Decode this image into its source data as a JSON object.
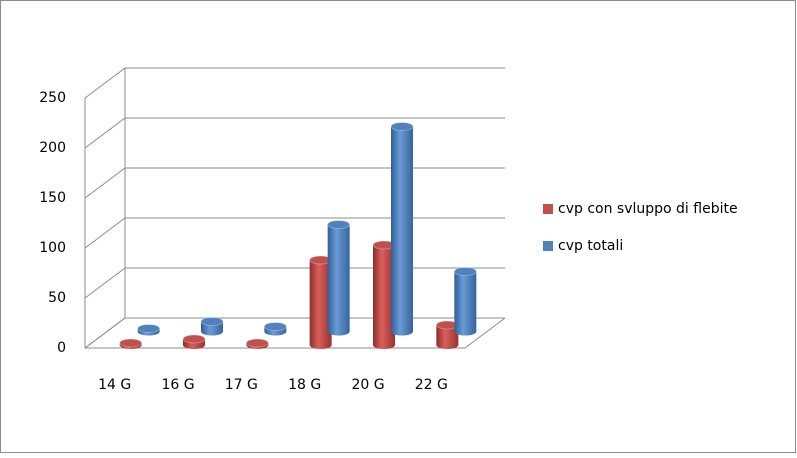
{
  "chart_data": {
    "type": "bar3d",
    "categories": [
      "14 G",
      "16 G",
      "17 G",
      "18 G",
      "20 G",
      "22 G"
    ],
    "series": [
      {
        "name": "cvp con svluppo di flebite",
        "color": "#c0504d",
        "values": [
          2,
          6,
          2,
          85,
          100,
          20
        ]
      },
      {
        "name": "cvp totali",
        "color": "#4f81bd",
        "values": [
          3,
          10,
          5,
          107,
          205,
          60
        ]
      }
    ],
    "ylim": [
      0,
      250
    ],
    "yticks": [
      0,
      50,
      100,
      150,
      200,
      250
    ],
    "grid": true,
    "legend": "right"
  }
}
